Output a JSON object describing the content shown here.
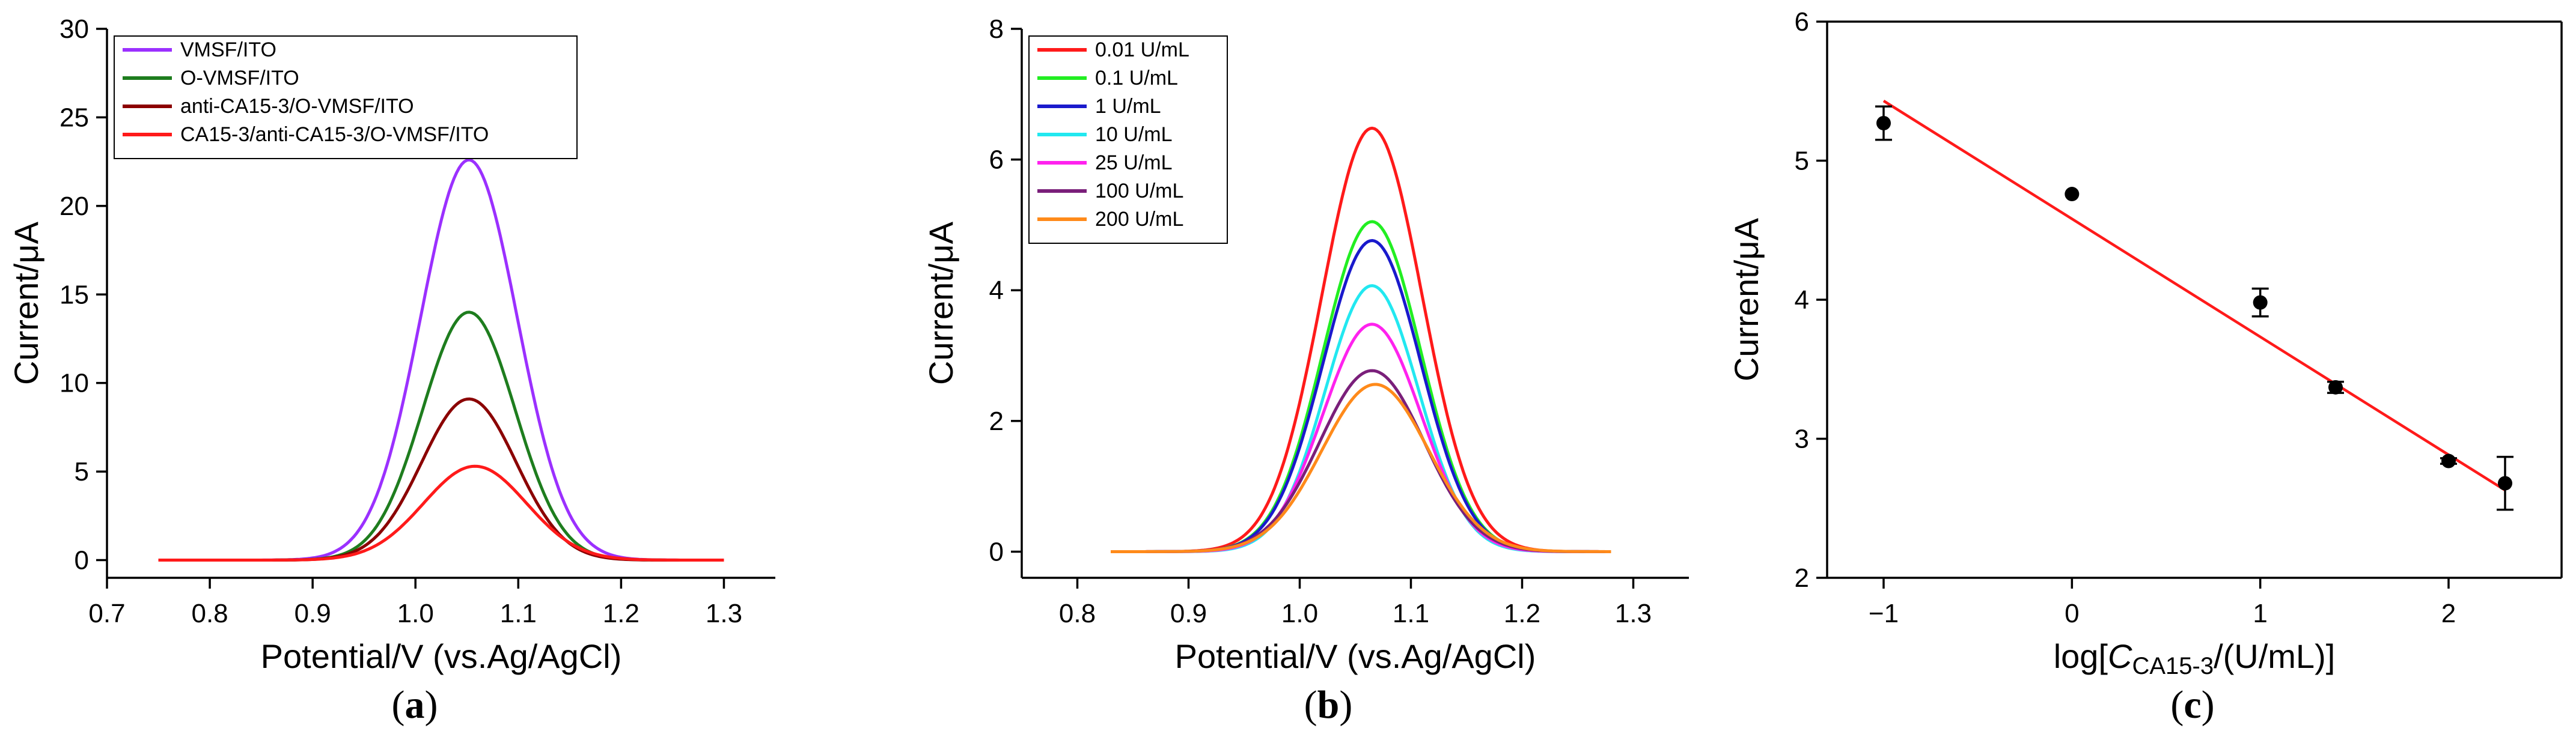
{
  "chart_data": [
    {
      "panel": "a",
      "type": "line",
      "panel_label": "a",
      "xlabel": "Potential/V (vs.Ag/AgCl)",
      "ylabel": "Current/μA",
      "xlim": [
        0.7,
        1.35
      ],
      "ylim": [
        -1,
        30
      ],
      "xticks": [
        0.7,
        0.8,
        0.9,
        1.0,
        1.1,
        1.2,
        1.3
      ],
      "xtick_labels": [
        "0.7",
        "0.8",
        "0.9",
        "1.0",
        "1.1",
        "1.2",
        "1.3"
      ],
      "yticks": [
        0,
        5,
        10,
        15,
        20,
        25,
        30
      ],
      "ytick_labels": [
        "0",
        "5",
        "10",
        "15",
        "20",
        "25",
        "30"
      ],
      "legend_position": "top-left",
      "curve_range": [
        0.75,
        1.3
      ],
      "series": [
        {
          "name": "VMSF/ITO",
          "color": "#9b30ff",
          "peak_x": 1.052,
          "peak_y": 22.6,
          "width": 0.047
        },
        {
          "name": "O-VMSF/ITO",
          "color": "#1e7d1e",
          "peak_x": 1.052,
          "peak_y": 14.0,
          "width": 0.045
        },
        {
          "name": "anti-CA15-3/O-VMSF/ITO",
          "color": "#8b0000",
          "peak_x": 1.052,
          "peak_y": 9.1,
          "width": 0.046
        },
        {
          "name": "CA15-3/anti-CA15-3/O-VMSF/ITO",
          "color": "#ff1a1a",
          "peak_x": 1.058,
          "peak_y": 5.3,
          "width": 0.05
        }
      ]
    },
    {
      "panel": "b",
      "type": "line",
      "panel_label": "b",
      "xlabel": "Potential/V (vs.Ag/AgCl)",
      "ylabel": "Current/μA",
      "xlim": [
        0.75,
        1.35
      ],
      "ylim": [
        -0.4,
        8
      ],
      "xticks": [
        0.8,
        0.9,
        1.0,
        1.1,
        1.2,
        1.3
      ],
      "xtick_labels": [
        "0.8",
        "0.9",
        "1.0",
        "1.1",
        "1.2",
        "1.3"
      ],
      "yticks": [
        0,
        2,
        4,
        6,
        8
      ],
      "ytick_labels": [
        "0",
        "2",
        "4",
        "6",
        "8"
      ],
      "legend_position": "top-left",
      "curve_range": [
        0.83,
        1.28
      ],
      "series": [
        {
          "name": "0.01 U/mL",
          "color": "#ff1a1a",
          "peak_x": 1.065,
          "peak_y": 6.48,
          "width": 0.045
        },
        {
          "name": "0.1 U/mL",
          "color": "#22ee22",
          "peak_x": 1.065,
          "peak_y": 5.05,
          "width": 0.044
        },
        {
          "name": "1 U/mL",
          "color": "#1a1acc",
          "peak_x": 1.065,
          "peak_y": 4.76,
          "width": 0.044
        },
        {
          "name": "10 U/mL",
          "color": "#22e8f0",
          "peak_x": 1.065,
          "peak_y": 4.07,
          "width": 0.042
        },
        {
          "name": "25 U/mL",
          "color": "#ff22ee",
          "peak_x": 1.065,
          "peak_y": 3.48,
          "width": 0.044
        },
        {
          "name": "100 U/mL",
          "color": "#7a1f7a",
          "peak_x": 1.065,
          "peak_y": 2.77,
          "width": 0.047
        },
        {
          "name": "200 U/mL",
          "color": "#ff8a1a",
          "peak_x": 1.068,
          "peak_y": 2.56,
          "width": 0.048
        }
      ]
    },
    {
      "panel": "c",
      "type": "scatter",
      "panel_label": "c",
      "xlabel_prefix": "log[",
      "xlabel_italic": "C",
      "xlabel_sub": "CA15-3",
      "xlabel_suffix": "/(U/mL)]",
      "ylabel": "Current/μA",
      "xlim": [
        -1.3,
        2.6
      ],
      "ylim": [
        2,
        6
      ],
      "xticks": [
        -1,
        0,
        1,
        2
      ],
      "xtick_labels": [
        "−1",
        "0",
        "1",
        "2"
      ],
      "yticks": [
        2,
        3,
        4,
        5,
        6
      ],
      "ytick_labels": [
        "2",
        "3",
        "4",
        "5",
        "6"
      ],
      "points": [
        {
          "x": -1.0,
          "y": 5.27,
          "err": 0.12
        },
        {
          "x": 0.0,
          "y": 4.76,
          "err": 0.0
        },
        {
          "x": 1.0,
          "y": 3.98,
          "err": 0.1
        },
        {
          "x": 1.4,
          "y": 3.37,
          "err": 0.04
        },
        {
          "x": 2.0,
          "y": 2.84,
          "err": 0.02
        },
        {
          "x": 2.3,
          "y": 2.68,
          "err": 0.19
        }
      ],
      "fit_line": {
        "x": [
          -1.0,
          2.3
        ],
        "y": [
          5.43,
          2.63
        ],
        "color": "#ff1a1a"
      }
    }
  ]
}
